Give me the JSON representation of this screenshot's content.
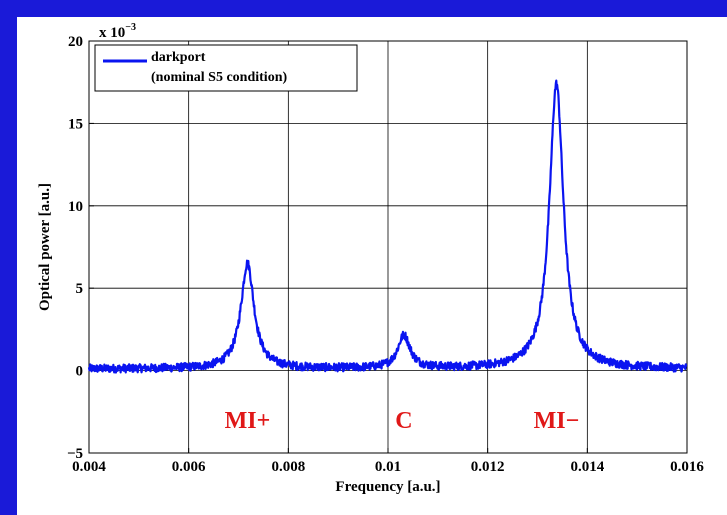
{
  "chart_data": {
    "type": "line",
    "xlabel": "Frequency [a.u.]",
    "ylabel": "Optical power [a.u.]",
    "y_scale_label": "x 10",
    "y_scale_exponent": "−3",
    "xlim": [
      0.004,
      0.016
    ],
    "ylim": [
      -5,
      20
    ],
    "x_ticks": [
      0.004,
      0.006,
      0.008,
      0.01,
      0.012,
      0.014,
      0.016
    ],
    "x_tick_labels": [
      "0.004",
      "0.006",
      "0.008",
      "0.01",
      "0.012",
      "0.014",
      "0.016"
    ],
    "y_ticks": [
      -5,
      0,
      5,
      10,
      15,
      20
    ],
    "y_tick_labels": [
      "−5",
      "0",
      "5",
      "10",
      "15",
      "20"
    ],
    "grid": true,
    "legend_position": "top-left",
    "series": [
      {
        "name": "darkport\n(nominal S5 condition)",
        "name_lines": [
          "darkport",
          "(nominal S5 condition)"
        ],
        "color": "#0a14f0",
        "baseline": 0.1,
        "noise": 0.25,
        "peaks": [
          {
            "x": 0.00718,
            "height": 6.4,
            "width": 0.00016
          },
          {
            "x": 0.01032,
            "height": 2.0,
            "width": 0.00015
          },
          {
            "x": 0.01338,
            "height": 17.3,
            "width": 0.00017
          }
        ],
        "x": [
          0.004,
          0.0065,
          0.007,
          0.00718,
          0.0074,
          0.008,
          0.0099,
          0.01032,
          0.0107,
          0.0125,
          0.013,
          0.01338,
          0.0137,
          0.0145,
          0.016
        ],
        "y": [
          0.1,
          0.3,
          1.8,
          6.4,
          2.0,
          0.3,
          0.5,
          2.0,
          0.5,
          0.7,
          3.0,
          17.3,
          3.4,
          0.5,
          0.1
        ]
      }
    ],
    "annotations": [
      {
        "text": "MI+",
        "x": 0.00718,
        "y": -3.0
      },
      {
        "text": "C",
        "x": 0.01032,
        "y": -3.0
      },
      {
        "text": "MI−",
        "x": 0.01338,
        "y": -3.0
      }
    ]
  }
}
